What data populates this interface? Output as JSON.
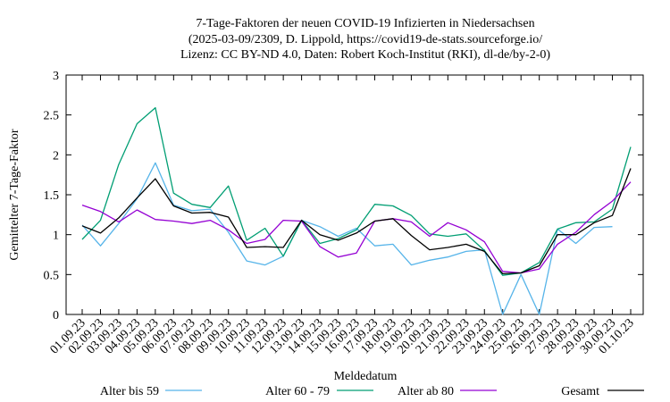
{
  "chart_data": {
    "type": "line",
    "title_lines": [
      "7-Tage-Faktoren der neuen COVID-19 Infizierten in Niedersachsen",
      "(2025-03-09/2309, D. Lippold, https://covid19-de-stats.sourceforge.io/",
      "Lizenz: CC BY-ND 4.0, Daten: Robert Koch-Institut (RKI), dl-de/by-2-0)"
    ],
    "xlabel": "Meldedatum",
    "ylabel": "Gemittelter 7-Tage-Faktor",
    "ylim": [
      0,
      3
    ],
    "yticks": [
      0,
      0.5,
      1,
      1.5,
      2,
      2.5,
      3
    ],
    "ytick_labels": [
      "0",
      "0.5",
      "1",
      "1.5",
      "2",
      "2.5",
      "3"
    ],
    "grid": false,
    "legend_position": "bottom",
    "categories": [
      "01.09.23",
      "02.09.23",
      "03.09.23",
      "04.09.23",
      "05.09.23",
      "06.09.23",
      "07.09.23",
      "08.09.23",
      "09.09.23",
      "10.09.23",
      "11.09.23",
      "12.09.23",
      "13.09.23",
      "14.09.23",
      "15.09.23",
      "16.09.23",
      "17.09.23",
      "18.09.23",
      "19.09.23",
      "20.09.23",
      "21.09.23",
      "22.09.23",
      "23.09.23",
      "24.09.23",
      "25.09.23",
      "26.09.23",
      "27.09.23",
      "28.09.23",
      "29.09.23",
      "30.09.23",
      "01.10.23"
    ],
    "series": [
      {
        "name": "Alter bis 59",
        "color": "#56b4e9",
        "values": [
          1.12,
          0.86,
          1.14,
          1.45,
          1.9,
          1.37,
          1.3,
          1.32,
          1.03,
          0.67,
          0.62,
          0.73,
          1.18,
          1.1,
          0.98,
          1.08,
          0.86,
          0.88,
          0.62,
          0.68,
          0.72,
          0.79,
          0.81,
          0.0,
          0.5,
          0.0,
          1.07,
          0.89,
          1.09,
          1.1,
          null
        ]
      },
      {
        "name": "Alter 60 - 79",
        "color": "#009e73",
        "values": [
          0.94,
          1.18,
          1.88,
          2.39,
          2.59,
          1.52,
          1.38,
          1.34,
          1.61,
          0.93,
          1.08,
          0.73,
          1.18,
          0.89,
          0.95,
          1.06,
          1.38,
          1.36,
          1.24,
          1.01,
          0.98,
          1.01,
          0.8,
          0.49,
          0.52,
          0.65,
          1.07,
          1.15,
          1.16,
          1.32,
          2.1
        ]
      },
      {
        "name": "Alter ab 80",
        "color": "#9400d3",
        "values": [
          1.37,
          1.29,
          1.16,
          1.31,
          1.19,
          1.17,
          1.14,
          1.18,
          1.06,
          0.89,
          0.94,
          1.18,
          1.17,
          0.85,
          0.72,
          0.77,
          1.17,
          1.2,
          1.16,
          0.98,
          1.15,
          1.06,
          0.91,
          0.54,
          0.52,
          0.57,
          0.88,
          1.03,
          1.25,
          1.42,
          1.66
        ]
      },
      {
        "name": "Gesamt",
        "color": "#000000",
        "values": [
          1.11,
          1.02,
          1.21,
          1.46,
          1.7,
          1.36,
          1.27,
          1.28,
          1.22,
          0.84,
          0.85,
          0.84,
          1.18,
          1.0,
          0.93,
          1.02,
          1.17,
          1.2,
          0.99,
          0.81,
          0.84,
          0.88,
          0.79,
          0.51,
          0.52,
          0.61,
          1.0,
          1.0,
          1.15,
          1.24,
          1.83
        ]
      }
    ]
  }
}
